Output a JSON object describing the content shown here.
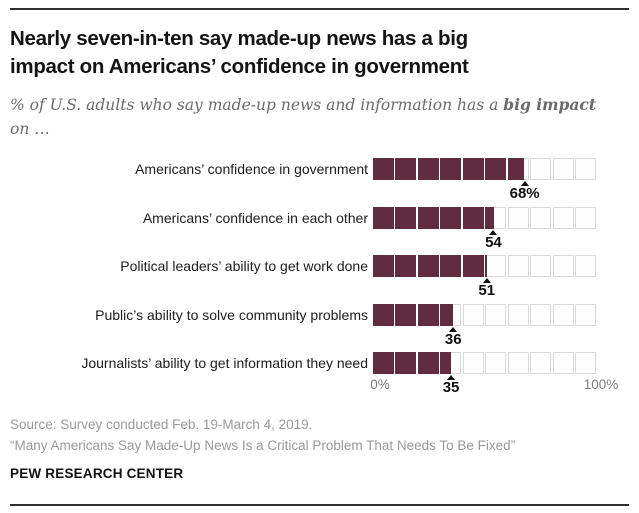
{
  "header": {
    "title_lines": [
      "Nearly seven-in-ten say made-up news has a big",
      "impact on Americans’ confidence in government"
    ],
    "subtitle_prefix": "% of U.S. adults who say made-up news and information has a ",
    "subtitle_bold": "big impact",
    "subtitle_line2": "on …"
  },
  "chart_data": {
    "type": "bar",
    "variant": "segmented-square-bar",
    "unit": "% of U.S. adults",
    "categories": [
      "Americans’ confidence in government",
      "Americans’ confidence in each other",
      "Political leaders’ ability to get work done",
      "Public’s ability to solve community problems",
      "Journalists’ ability to get information they need"
    ],
    "values": [
      68,
      54,
      51,
      36,
      35
    ],
    "value_labels": [
      "68%",
      "54",
      "51",
      "36",
      "35"
    ],
    "squares_per_row": 10,
    "square_value": 10,
    "xlim": [
      0,
      100
    ],
    "axis_ticks": [
      "0%",
      "100%"
    ],
    "legend": "none",
    "colors": {
      "fill": "#612c40",
      "empty_border": "#d9d9d9",
      "marker": "#111111"
    }
  },
  "footer": {
    "source_line1": "Source: Survey conducted Feb. 19-March 4, 2019.",
    "source_line2": "“Many Americans Say Made-Up News Is a Critical Problem That Needs To Be Fixed”",
    "brand": "PEW RESEARCH CENTER"
  }
}
